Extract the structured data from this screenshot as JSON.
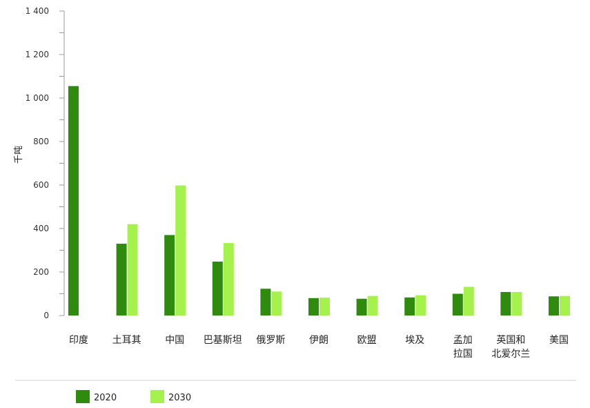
{
  "chart_data": {
    "type": "bar",
    "ylabel": "千吨",
    "ylim": [
      0,
      1400
    ],
    "yticks": [
      "0",
      "200",
      "400",
      "600",
      "800",
      "1 000",
      "1 200",
      "1 400"
    ],
    "categories": [
      [
        "印度"
      ],
      [
        "土耳其"
      ],
      [
        "中国"
      ],
      [
        "巴基斯坦"
      ],
      [
        "俄罗斯"
      ],
      [
        "伊朗"
      ],
      [
        "欧盟"
      ],
      [
        "埃及"
      ],
      [
        "孟加",
        "拉国"
      ],
      [
        "英国和",
        "北爱尔兰"
      ],
      [
        "美国"
      ]
    ],
    "series": [
      {
        "name": "2020",
        "color": "#2e8b0e",
        "values": [
          1055,
          330,
          370,
          248,
          123,
          80,
          77,
          83,
          100,
          108,
          88
        ]
      },
      {
        "name": "2030",
        "color": "#a6f24c",
        "values": [
          null,
          420,
          598,
          333,
          110,
          82,
          90,
          93,
          132,
          108,
          90
        ]
      }
    ],
    "legend_position": "bottom-left",
    "grid": false
  }
}
